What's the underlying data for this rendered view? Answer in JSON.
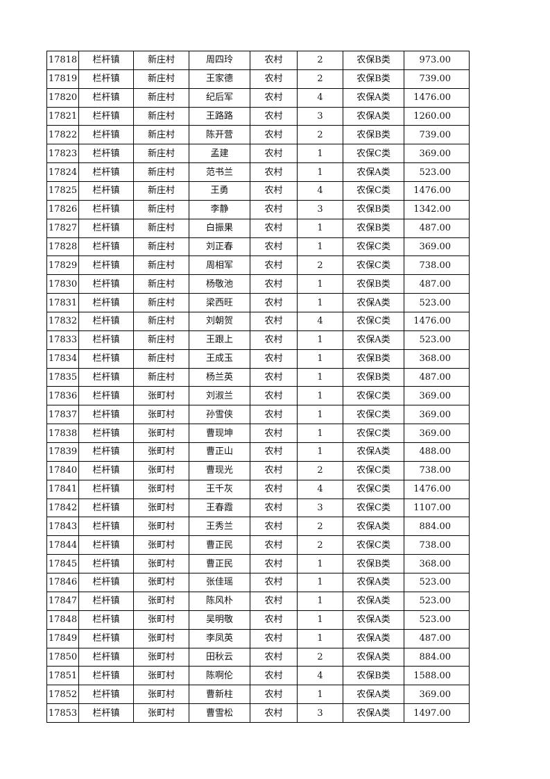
{
  "rows": [
    [
      "17818",
      "栏杆镇",
      "新庄村",
      "周四玲",
      "农村",
      "2",
      "农保B类",
      "973.00"
    ],
    [
      "17819",
      "栏杆镇",
      "新庄村",
      "王家德",
      "农村",
      "2",
      "农保B类",
      "739.00"
    ],
    [
      "17820",
      "栏杆镇",
      "新庄村",
      "纪后军",
      "农村",
      "4",
      "农保A类",
      "1476.00"
    ],
    [
      "17821",
      "栏杆镇",
      "新庄村",
      "王路路",
      "农村",
      "3",
      "农保A类",
      "1260.00"
    ],
    [
      "17822",
      "栏杆镇",
      "新庄村",
      "陈开营",
      "农村",
      "2",
      "农保B类",
      "739.00"
    ],
    [
      "17823",
      "栏杆镇",
      "新庄村",
      "孟建",
      "农村",
      "1",
      "农保C类",
      "369.00"
    ],
    [
      "17824",
      "栏杆镇",
      "新庄村",
      "范书兰",
      "农村",
      "1",
      "农保A类",
      "523.00"
    ],
    [
      "17825",
      "栏杆镇",
      "新庄村",
      "王勇",
      "农村",
      "4",
      "农保C类",
      "1476.00"
    ],
    [
      "17826",
      "栏杆镇",
      "新庄村",
      "李静",
      "农村",
      "3",
      "农保B类",
      "1342.00"
    ],
    [
      "17827",
      "栏杆镇",
      "新庄村",
      "白振果",
      "农村",
      "1",
      "农保B类",
      "487.00"
    ],
    [
      "17828",
      "栏杆镇",
      "新庄村",
      "刘正春",
      "农村",
      "1",
      "农保C类",
      "369.00"
    ],
    [
      "17829",
      "栏杆镇",
      "新庄村",
      "周相军",
      "农村",
      "2",
      "农保C类",
      "738.00"
    ],
    [
      "17830",
      "栏杆镇",
      "新庄村",
      "杨敬池",
      "农村",
      "1",
      "农保B类",
      "487.00"
    ],
    [
      "17831",
      "栏杆镇",
      "新庄村",
      "梁西旺",
      "农村",
      "1",
      "农保A类",
      "523.00"
    ],
    [
      "17832",
      "栏杆镇",
      "新庄村",
      "刘朝贺",
      "农村",
      "4",
      "农保C类",
      "1476.00"
    ],
    [
      "17833",
      "栏杆镇",
      "新庄村",
      "王跟上",
      "农村",
      "1",
      "农保A类",
      "523.00"
    ],
    [
      "17834",
      "栏杆镇",
      "新庄村",
      "王成玉",
      "农村",
      "1",
      "农保B类",
      "368.00"
    ],
    [
      "17835",
      "栏杆镇",
      "新庄村",
      "杨兰英",
      "农村",
      "1",
      "农保B类",
      "487.00"
    ],
    [
      "17836",
      "栏杆镇",
      "张町村",
      "刘淑兰",
      "农村",
      "1",
      "农保C类",
      "369.00"
    ],
    [
      "17837",
      "栏杆镇",
      "张町村",
      "孙雪侠",
      "农村",
      "1",
      "农保C类",
      "369.00"
    ],
    [
      "17838",
      "栏杆镇",
      "张町村",
      "曹现坤",
      "农村",
      "1",
      "农保C类",
      "369.00"
    ],
    [
      "17839",
      "栏杆镇",
      "张町村",
      "曹正山",
      "农村",
      "1",
      "农保A类",
      "488.00"
    ],
    [
      "17840",
      "栏杆镇",
      "张町村",
      "曹现光",
      "农村",
      "2",
      "农保C类",
      "738.00"
    ],
    [
      "17841",
      "栏杆镇",
      "张町村",
      "王千灰",
      "农村",
      "4",
      "农保C类",
      "1476.00"
    ],
    [
      "17842",
      "栏杆镇",
      "张町村",
      "王春霞",
      "农村",
      "3",
      "农保C类",
      "1107.00"
    ],
    [
      "17843",
      "栏杆镇",
      "张町村",
      "王秀兰",
      "农村",
      "2",
      "农保A类",
      "884.00"
    ],
    [
      "17844",
      "栏杆镇",
      "张町村",
      "曹正民",
      "农村",
      "2",
      "农保C类",
      "738.00"
    ],
    [
      "17845",
      "栏杆镇",
      "张町村",
      "曹正民",
      "农村",
      "1",
      "农保B类",
      "368.00"
    ],
    [
      "17846",
      "栏杆镇",
      "张町村",
      "张佳瑶",
      "农村",
      "1",
      "农保A类",
      "523.00"
    ],
    [
      "17847",
      "栏杆镇",
      "张町村",
      "陈风朴",
      "农村",
      "1",
      "农保A类",
      "523.00"
    ],
    [
      "17848",
      "栏杆镇",
      "张町村",
      "吴明敬",
      "农村",
      "1",
      "农保A类",
      "523.00"
    ],
    [
      "17849",
      "栏杆镇",
      "张町村",
      "李凤英",
      "农村",
      "1",
      "农保A类",
      "487.00"
    ],
    [
      "17850",
      "栏杆镇",
      "张町村",
      "田秋云",
      "农村",
      "2",
      "农保A类",
      "884.00"
    ],
    [
      "17851",
      "栏杆镇",
      "张町村",
      "陈啊伦",
      "农村",
      "4",
      "农保B类",
      "1588.00"
    ],
    [
      "17852",
      "栏杆镇",
      "张町村",
      "曹新柱",
      "农村",
      "1",
      "农保A类",
      "369.00"
    ],
    [
      "17853",
      "栏杆镇",
      "张町村",
      "曹雪松",
      "农村",
      "3",
      "农保A类",
      "1497.00"
    ]
  ]
}
